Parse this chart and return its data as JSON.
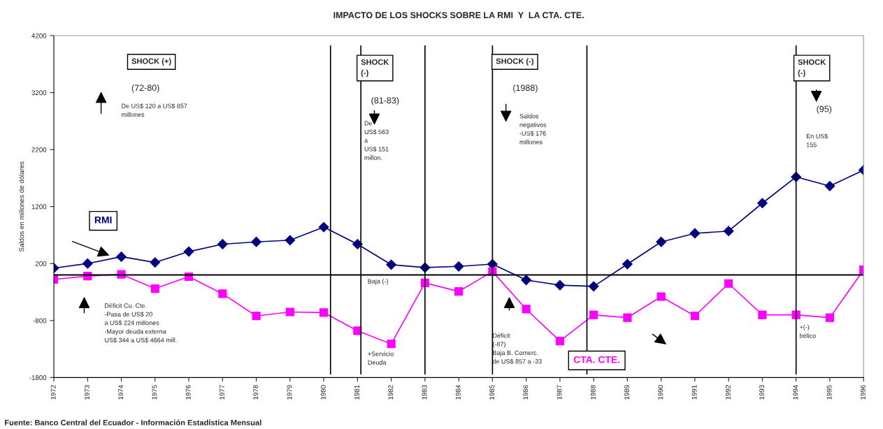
{
  "chart_data": {
    "type": "line",
    "title": "IMPACTO DE LOS SHOCKS SOBRE LA RMI  Y  LA CTA. CTE.",
    "ylabel": "Saldos en millones de dólares",
    "x": [
      1972,
      1973,
      1974,
      1975,
      1976,
      1977,
      1978,
      1979,
      1980,
      1981,
      1982,
      1983,
      1984,
      1985,
      1986,
      1987,
      1988,
      1989,
      1990,
      1991,
      1992,
      1993,
      1994,
      1995,
      1996
    ],
    "series": [
      {
        "name": "RMI",
        "color": "#000080",
        "marker": "diamond",
        "values": [
          120,
          200,
          320,
          220,
          410,
          540,
          580,
          610,
          840,
          540,
          180,
          130,
          150,
          190,
          -90,
          -180,
          -200,
          190,
          580,
          730,
          770,
          1260,
          1720,
          1560,
          1840
        ]
      },
      {
        "name": "CTA. CTE.",
        "color": "#ff00ff",
        "marker": "square",
        "values": [
          -80,
          -20,
          10,
          -240,
          -30,
          -330,
          -720,
          -650,
          -660,
          -980,
          -1210,
          -140,
          -290,
          60,
          -600,
          -1160,
          -700,
          -750,
          -380,
          -720,
          -150,
          -700,
          -700,
          -750,
          90
        ]
      }
    ],
    "xlim": [
      1972,
      1996
    ],
    "xticks": [
      1972,
      1973,
      1974,
      1975,
      1976,
      1977,
      1978,
      1979,
      1980,
      1981,
      1982,
      1983,
      1984,
      1985,
      1986,
      1987,
      1988,
      1989,
      1990,
      1991,
      1992,
      1993,
      1994,
      1995,
      1996
    ],
    "ylim": [
      -1800,
      4200
    ],
    "yticks": [
      -1800,
      -800,
      200,
      1200,
      2200,
      3200,
      4200
    ],
    "ref_lines": [
      {
        "axis": "x",
        "value": 1980.2,
        "color": "#000000"
      },
      {
        "axis": "x",
        "value": 1981.1,
        "color": "#000000"
      },
      {
        "axis": "x",
        "value": 1983,
        "color": "#000000"
      },
      {
        "axis": "x",
        "value": 1985,
        "color": "#000000"
      },
      {
        "axis": "x",
        "value": 1987.8,
        "color": "#000000"
      },
      {
        "axis": "x",
        "value": 1994,
        "color": "#000000"
      }
    ],
    "annotations": [
      "SHOCK (+)",
      "(72-80)",
      "De US$ 120 a US$ 857\nmillones",
      "SHOCK\n(-)",
      "(81-83)",
      "De\nUS$ 563\na\nUS$ 151\nmillon.",
      "SHOCK (-)",
      "(1988)",
      "Saldos\nnegativos\n-US$ 176\nmillones",
      "SHOCK\n(-)",
      "(95)",
      "En US$\n155",
      "Déficit Cu. Cte.\n-Pasa de US$ 20\na US$ 224 millones\n-Mayor deuda externa\nUS$ 344 a US$ 4664 mill.",
      "Baja (-)",
      "+Servicio\nDeuda",
      "Déficit\n(-87)\nBaja B. Comerc.\nde US$ 857 a -33",
      "+(-)\nbélico",
      "Fuente: Banco Central del Ecuador - Información Estadística Mensual"
    ],
    "grid": false,
    "legend": false,
    "line_style": "solid"
  }
}
